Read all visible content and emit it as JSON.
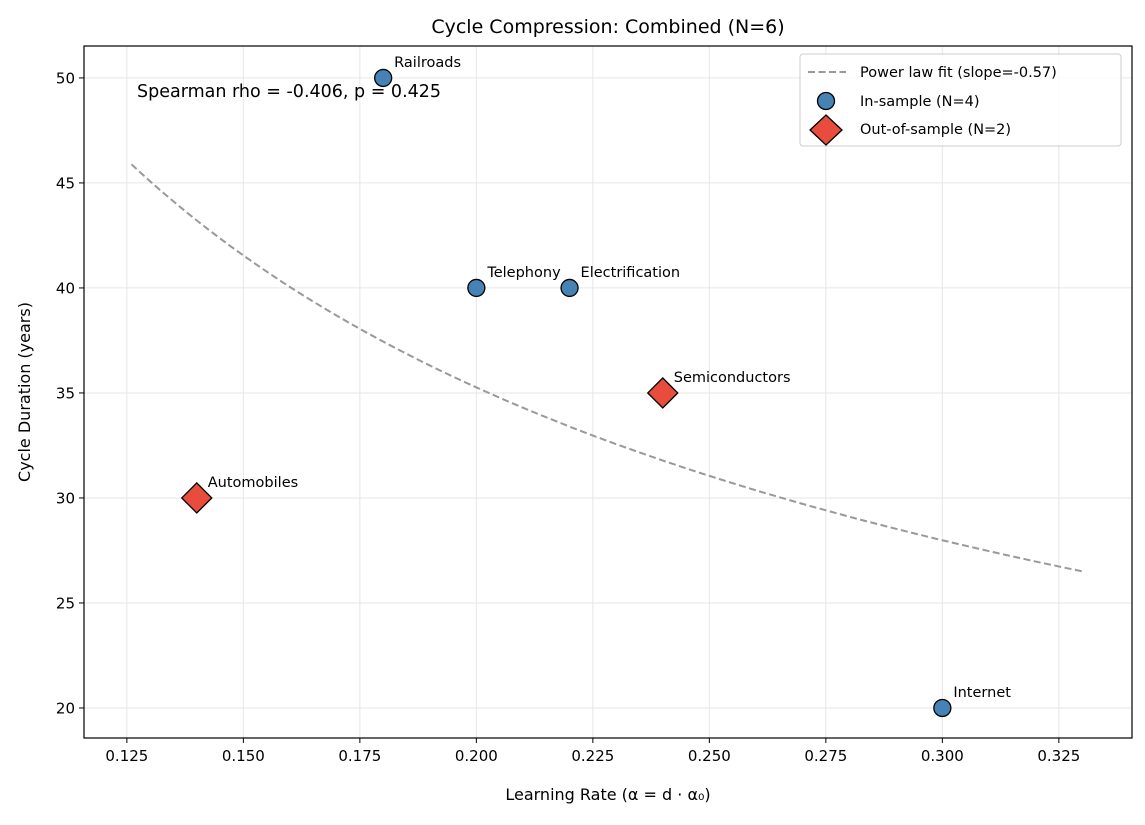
{
  "chart_data": {
    "type": "scatter",
    "title": "Cycle Compression: Combined (N=6)",
    "xlabel": "Learning Rate (α = d · α₀)",
    "ylabel": "Cycle Duration (years)",
    "xlim": [
      0.1158,
      0.3407
    ],
    "ylim": [
      18.57,
      51.52
    ],
    "xticks": [
      0.125,
      0.15,
      0.175,
      0.2,
      0.225,
      0.25,
      0.275,
      0.3,
      0.325
    ],
    "xtick_labels": [
      "0.125",
      "0.150",
      "0.175",
      "0.200",
      "0.225",
      "0.250",
      "0.275",
      "0.300",
      "0.325"
    ],
    "yticks": [
      20,
      25,
      30,
      35,
      40,
      45,
      50
    ],
    "ytick_labels": [
      "20",
      "25",
      "30",
      "35",
      "40",
      "45",
      "50"
    ],
    "grid": true,
    "legend_placement": "top-right",
    "annotation": "Spearman rho = -0.406, p = 0.425",
    "fit": {
      "name": "Power law fit (slope=-0.57)",
      "slope": -0.57,
      "coefficient": 14.09,
      "x_range": [
        0.126,
        0.33
      ],
      "color": "#999999",
      "style": "dashed"
    },
    "series": [
      {
        "name": "In-sample (N=4)",
        "marker": "circle",
        "color": "#4682b4",
        "points": [
          {
            "label": "Railroads",
            "x": 0.18,
            "y": 50
          },
          {
            "label": "Telephony",
            "x": 0.2,
            "y": 40
          },
          {
            "label": "Electrification",
            "x": 0.22,
            "y": 40
          },
          {
            "label": "Internet",
            "x": 0.3,
            "y": 20
          }
        ]
      },
      {
        "name": "Out-of-sample (N=2)",
        "marker": "diamond",
        "color": "#e74c3c",
        "points": [
          {
            "label": "Automobiles",
            "x": 0.14,
            "y": 30
          },
          {
            "label": "Semiconductors",
            "x": 0.24,
            "y": 35
          }
        ]
      }
    ]
  }
}
